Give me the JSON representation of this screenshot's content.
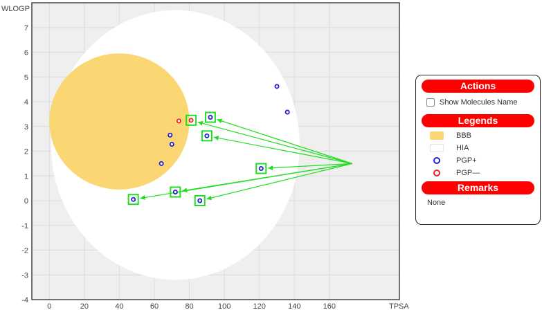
{
  "chart_data": {
    "type": "scatter",
    "xlabel": "TPSA",
    "ylabel": "WLOGP",
    "xlim": [
      -10,
      200
    ],
    "ylim": [
      -4,
      8
    ],
    "x_ticks": [
      0,
      20,
      40,
      60,
      80,
      100,
      120,
      140,
      160
    ],
    "y_ticks": [
      -4,
      -3,
      -2,
      -1,
      0,
      1,
      2,
      3,
      4,
      5,
      6,
      7
    ],
    "grid": true,
    "regions": [
      {
        "name": "HIA",
        "color": "#ffffff",
        "shape": "ellipse",
        "center": [
          72,
          2.25
        ],
        "radii": [
          71,
          5.45
        ]
      },
      {
        "name": "BBB",
        "color": "#fbd774",
        "shape": "ellipse",
        "center": [
          40,
          3.2
        ],
        "radii": [
          40,
          2.75
        ]
      }
    ],
    "series": [
      {
        "name": "PGP+",
        "color": "#1f1fcf",
        "points": [
          [
            130,
            4.62
          ],
          [
            136,
            3.58
          ],
          [
            92,
            3.37
          ],
          [
            90,
            2.62
          ],
          [
            69,
            2.65
          ],
          [
            70,
            2.28
          ],
          [
            64,
            1.5
          ],
          [
            121,
            1.3
          ],
          [
            72,
            0.35
          ],
          [
            48,
            0.05
          ],
          [
            86,
            0.0
          ]
        ]
      },
      {
        "name": "PGP-",
        "color": "#ee2222",
        "points": [
          [
            74,
            3.22
          ],
          [
            81,
            3.25
          ]
        ]
      }
    ],
    "highlighted_points": [
      [
        81,
        3.25
      ],
      [
        92,
        3.37
      ],
      [
        90,
        2.62
      ],
      [
        121,
        1.3
      ],
      [
        72,
        0.35
      ],
      [
        48,
        0.05
      ],
      [
        86,
        0.0
      ]
    ],
    "arrow_origin": [
      173,
      1.5
    ],
    "highlight_color": "#22dd22"
  },
  "panel": {
    "actions": {
      "title": "Actions",
      "show_names_label": "Show Molecules Name"
    },
    "legends": {
      "title": "Legends",
      "items": [
        {
          "label": "BBB",
          "kind": "swatch",
          "color": "#fbd774"
        },
        {
          "label": "HIA",
          "kind": "swatch",
          "color": "#ffffff"
        },
        {
          "label": "PGP+",
          "kind": "ring",
          "color": "#1f1fcf"
        },
        {
          "label": "PGP—",
          "kind": "ring",
          "color": "#ee2222"
        }
      ]
    },
    "remarks": {
      "title": "Remarks",
      "text": "None"
    },
    "header_color": "#ff0000"
  }
}
